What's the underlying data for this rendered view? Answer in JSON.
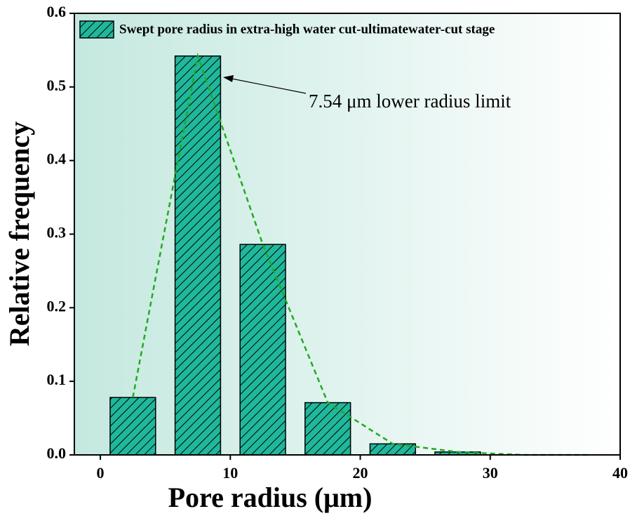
{
  "chart_data": {
    "type": "bar",
    "x": [
      2.5,
      7.5,
      12.5,
      17.5,
      22.5,
      27.5,
      32.5,
      37.5
    ],
    "bar_width": 3.5,
    "series": [
      {
        "name": "Swept pore radius in extra-high water cut-ultimatewater-cut stage",
        "color": "#1fb89c",
        "values": [
          0.078,
          0.542,
          0.286,
          0.071,
          0.015,
          0.004,
          0,
          0
        ]
      }
    ],
    "line_color": "#22aa22",
    "annotation": "7.54 μm lower radius limit",
    "xlabel": "Pore radius (μm)",
    "ylabel": "Relative frequency",
    "xlim": [
      -2,
      40
    ],
    "xticks": [
      0,
      10,
      20,
      30,
      40
    ],
    "ylim": [
      0,
      0.6
    ],
    "yticks": [
      {
        "value": 0,
        "label": "0.0"
      },
      0.1,
      0.2,
      0.3,
      0.4,
      0.5,
      0.6
    ],
    "legend": "upper left"
  }
}
